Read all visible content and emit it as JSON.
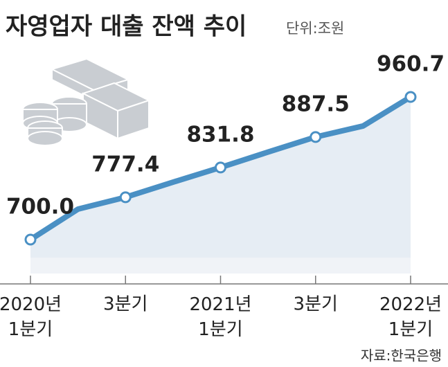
{
  "chart_data": {
    "type": "line",
    "title": "자영업자 대출 잔액 추이",
    "subtitle": "단위:조원",
    "source": "자료:한국은행",
    "categories": [
      "2020년\n1분기",
      null,
      "3분기",
      null,
      "2021년\n1분기",
      null,
      "3분기",
      null,
      "2022년\n1분기"
    ],
    "values": [
      700.0,
      755.7,
      777.4,
      805,
      831.8,
      860,
      887.5,
      907.6,
      960.7
    ],
    "value_labels": [
      "700.0",
      null,
      "777.4",
      null,
      "831.8",
      null,
      "887.5",
      null,
      "960.7"
    ],
    "color": "#4a90c4"
  }
}
